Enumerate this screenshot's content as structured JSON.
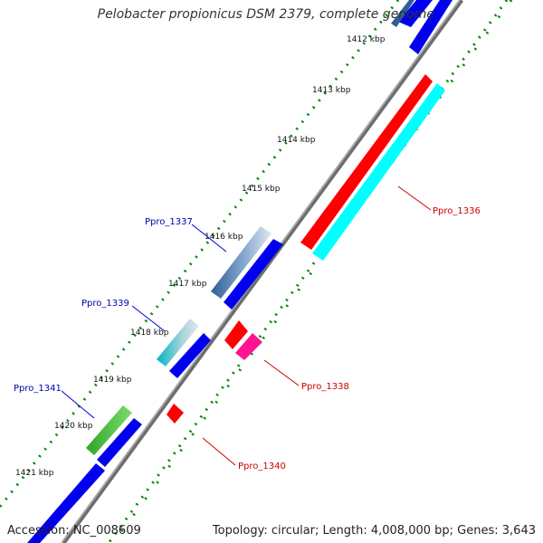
{
  "header": {
    "title": "Pelobacter propionicus DSM 2379, complete genome"
  },
  "footer": {
    "accession": "Accession: NC_008609",
    "topology": "Topology: circular; Length: 4,008,000 bp; Genes: 3,643"
  },
  "scale": {
    "ticks": [
      "1412 kbp",
      "1413 kbp",
      "1414 kbp",
      "1415 kbp",
      "1416 kbp",
      "1417 kbp",
      "1418 kbp",
      "1419 kbp",
      "1420 kbp",
      "1421 kbp"
    ]
  },
  "genes": {
    "forward": [
      "Ppro_1337",
      "Ppro_1339",
      "Ppro_1341"
    ],
    "reverse": [
      "Ppro_1336",
      "Ppro_1338",
      "Ppro_1340"
    ]
  },
  "colors": {
    "forward_label": "#0000aa",
    "reverse_label": "#cc0000",
    "cds_blue": "#0000ee",
    "cds_red": "#ff0000",
    "cds_cyan": "#00ffff",
    "cds_green": "#44cc33",
    "cds_magenta": "#ff1493",
    "backbone": "#888888",
    "dots": "#008800"
  }
}
